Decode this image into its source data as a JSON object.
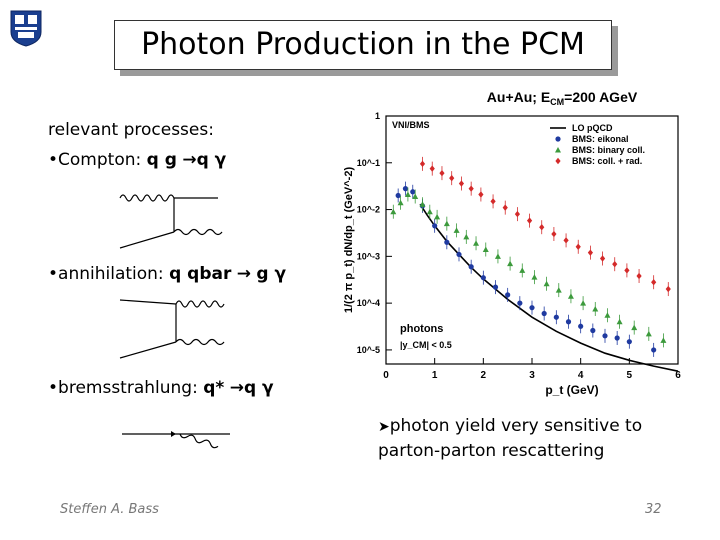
{
  "title": "Photon Production in the PCM",
  "processes": {
    "heading": "relevant processes:",
    "compton": {
      "label": "Compton:",
      "reaction": "q g",
      "arrow": "→",
      "products": "q γ"
    },
    "annihilation": {
      "label": "annihilation:",
      "reaction": "q qbar",
      "arrow": "→",
      "products": "g γ"
    },
    "bremsstrahlung": {
      "label": "bremsstrahlung:",
      "reaction": "q*",
      "arrow": "→",
      "products": "q γ"
    }
  },
  "conclusion": "photon yield very sensitive to parton-parton rescattering",
  "footer": {
    "author": "Steffen A. Bass",
    "page": "32"
  },
  "chart_data": {
    "type": "scatter",
    "title": "Au+Au; E_CM=200 AGeV",
    "xlabel": "p_t (GeV)",
    "ylabel": "1/(2 π p_t) dN/dp_t (GeV^-2)",
    "xlim": [
      0,
      6
    ],
    "ylim": [
      5e-06,
      1
    ],
    "log_y": true,
    "xticks": [
      "0",
      "1",
      "2",
      "3",
      "4",
      "5",
      "6"
    ],
    "yticks": [
      "1",
      "10^-1",
      "10^-2",
      "10^-3",
      "10^-4",
      "10^-5"
    ],
    "annotations": [
      "VNI/BMS",
      "photons",
      "|y_CM| < 0.5"
    ],
    "legend_position": "top-right",
    "series": [
      {
        "name": "LO pQCD",
        "kind": "line",
        "color": "#000000",
        "x": [
          0.7,
          0.85,
          1.0,
          1.25,
          1.5,
          1.75,
          2.0,
          2.5,
          3.0,
          3.5,
          4.0,
          4.5,
          5.0,
          5.5,
          6.0
        ],
        "y": [
          0.013,
          0.0075,
          0.0045,
          0.0021,
          0.0011,
          0.00058,
          0.00033,
          0.00012,
          5e-05,
          2.5e-05,
          1.4e-05,
          8.5e-06,
          6e-06,
          4.5e-06,
          3.5e-06
        ]
      },
      {
        "name": "BMS: eikonal",
        "kind": "points",
        "color": "#1f3aa0",
        "x": [
          0.25,
          0.4,
          0.55,
          0.75,
          1.0,
          1.25,
          1.5,
          1.75,
          2.0,
          2.25,
          2.5,
          2.75,
          3.0,
          3.25,
          3.5,
          3.75,
          4.0,
          4.25,
          4.5,
          4.75,
          5.0,
          5.5
        ],
        "y": [
          0.02,
          0.028,
          0.024,
          0.012,
          0.0045,
          0.002,
          0.0011,
          0.0006,
          0.00035,
          0.00022,
          0.00015,
          0.0001,
          8e-05,
          6e-05,
          5e-05,
          4e-05,
          3.2e-05,
          2.6e-05,
          2e-05,
          1.8e-05,
          1.5e-05,
          1e-05
        ]
      },
      {
        "name": "BMS: binary coll.",
        "kind": "points",
        "color": "#3c9a3c",
        "x": [
          0.15,
          0.3,
          0.45,
          0.6,
          0.75,
          0.9,
          1.05,
          1.25,
          1.45,
          1.65,
          1.85,
          2.05,
          2.3,
          2.55,
          2.8,
          3.05,
          3.3,
          3.55,
          3.8,
          4.05,
          4.3,
          4.55,
          4.8,
          5.1,
          5.4,
          5.7
        ],
        "y": [
          0.009,
          0.014,
          0.021,
          0.019,
          0.013,
          0.009,
          0.007,
          0.005,
          0.0036,
          0.0026,
          0.0019,
          0.0014,
          0.001,
          0.0007,
          0.0005,
          0.00036,
          0.00026,
          0.00019,
          0.00014,
          0.0001,
          7.5e-05,
          5.5e-05,
          4e-05,
          3e-05,
          2.2e-05,
          1.6e-05
        ]
      },
      {
        "name": "BMS: coll. + rad.",
        "kind": "points",
        "color": "#d42a2a",
        "x": [
          0.75,
          0.95,
          1.15,
          1.35,
          1.55,
          1.75,
          1.95,
          2.2,
          2.45,
          2.7,
          2.95,
          3.2,
          3.45,
          3.7,
          3.95,
          4.2,
          4.45,
          4.7,
          4.95,
          5.2,
          5.5,
          5.8
        ],
        "y": [
          0.095,
          0.075,
          0.06,
          0.047,
          0.036,
          0.028,
          0.021,
          0.015,
          0.011,
          0.008,
          0.0058,
          0.0042,
          0.003,
          0.0022,
          0.0016,
          0.0012,
          0.0009,
          0.00068,
          0.0005,
          0.00038,
          0.00028,
          0.0002
        ]
      }
    ]
  }
}
